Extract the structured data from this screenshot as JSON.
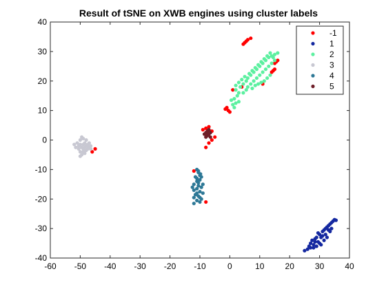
{
  "chart_data": {
    "type": "scatter",
    "title": "Result of tSNE on XWB engines using cluster labels",
    "xlabel": "",
    "ylabel": "",
    "xlim": [
      -60,
      40
    ],
    "ylim": [
      -40,
      40
    ],
    "xticks": [
      -60,
      -50,
      -40,
      -30,
      -20,
      -10,
      0,
      10,
      20,
      30,
      40
    ],
    "yticks": [
      -40,
      -30,
      -20,
      -10,
      0,
      10,
      20,
      30,
      40
    ],
    "grid": false,
    "legend_position": "top-right",
    "series": [
      {
        "name": "-1",
        "color": "#ff0000",
        "points": [
          [
            5.0,
            33.0
          ],
          [
            5.5,
            33.5
          ],
          [
            6.0,
            34.0
          ],
          [
            7.0,
            34.5
          ],
          [
            4.5,
            32.5
          ],
          [
            15.0,
            26.0
          ],
          [
            15.5,
            26.5
          ],
          [
            16.0,
            27.0
          ],
          [
            14.0,
            23.0
          ],
          [
            14.5,
            23.5
          ],
          [
            15.0,
            24.0
          ],
          [
            11.0,
            19.0
          ],
          [
            4.0,
            18.0
          ],
          [
            1.0,
            17.0
          ],
          [
            -1.0,
            11.0
          ],
          [
            -0.5,
            10.0
          ],
          [
            0.0,
            9.5
          ],
          [
            -1.5,
            10.5
          ],
          [
            -45.0,
            -3.0
          ],
          [
            -46.0,
            -4.0
          ],
          [
            -8.0,
            4.0
          ],
          [
            -7.0,
            4.5
          ],
          [
            -6.0,
            3.0
          ],
          [
            -9.0,
            3.5
          ],
          [
            -5.0,
            1.0
          ],
          [
            -6.0,
            0.0
          ],
          [
            -7.0,
            -1.0
          ],
          [
            -8.0,
            -2.5
          ],
          [
            -12.0,
            -10.5
          ],
          [
            -8.0,
            -21.0
          ]
        ]
      },
      {
        "name": "1",
        "color": "#1428a0",
        "points": [
          [
            25.0,
            -37.5
          ],
          [
            26.0,
            -37.0
          ],
          [
            27.0,
            -36.5
          ],
          [
            26.5,
            -36.0
          ],
          [
            28.0,
            -35.5
          ],
          [
            27.5,
            -34.0
          ],
          [
            28.5,
            -34.5
          ],
          [
            29.0,
            -33.0
          ],
          [
            30.0,
            -32.0
          ],
          [
            29.5,
            -31.5
          ],
          [
            31.0,
            -31.0
          ],
          [
            32.0,
            -30.0
          ],
          [
            33.0,
            -29.0
          ],
          [
            34.0,
            -28.0
          ],
          [
            35.0,
            -27.0
          ],
          [
            34.5,
            -27.5
          ],
          [
            33.5,
            -28.5
          ],
          [
            32.5,
            -29.5
          ],
          [
            31.5,
            -30.5
          ],
          [
            30.5,
            -33.0
          ],
          [
            29.5,
            -34.5
          ],
          [
            28.0,
            -36.5
          ],
          [
            27.0,
            -35.0
          ],
          [
            30.0,
            -35.0
          ],
          [
            31.0,
            -32.5
          ],
          [
            32.0,
            -32.0
          ],
          [
            33.0,
            -30.5
          ],
          [
            34.0,
            -30.0
          ],
          [
            31.5,
            -34.0
          ],
          [
            29.0,
            -36.0
          ],
          [
            28.5,
            -33.5
          ],
          [
            33.5,
            -31.0
          ],
          [
            35.5,
            -27.2
          ],
          [
            32.5,
            -33.0
          ],
          [
            30.5,
            -35.5
          ]
        ]
      },
      {
        "name": "2",
        "color": "#5cf0a0",
        "points": [
          [
            1.0,
            12.0
          ],
          [
            2.0,
            12.5
          ],
          [
            3.0,
            13.0
          ],
          [
            1.5,
            14.0
          ],
          [
            2.5,
            15.0
          ],
          [
            3.0,
            16.0
          ],
          [
            2.0,
            17.0
          ],
          [
            3.5,
            18.0
          ],
          [
            4.5,
            19.0
          ],
          [
            5.5,
            20.0
          ],
          [
            6.0,
            21.0
          ],
          [
            7.0,
            22.0
          ],
          [
            8.0,
            23.0
          ],
          [
            9.0,
            24.0
          ],
          [
            10.0,
            25.0
          ],
          [
            11.0,
            26.0
          ],
          [
            12.0,
            27.0
          ],
          [
            13.0,
            28.0
          ],
          [
            14.0,
            28.5
          ],
          [
            15.0,
            29.0
          ],
          [
            13.5,
            29.5
          ],
          [
            12.5,
            28.5
          ],
          [
            11.5,
            27.5
          ],
          [
            10.5,
            26.5
          ],
          [
            9.5,
            25.5
          ],
          [
            8.5,
            24.5
          ],
          [
            7.5,
            23.5
          ],
          [
            6.5,
            22.5
          ],
          [
            5.0,
            21.5
          ],
          [
            4.0,
            20.5
          ],
          [
            3.0,
            19.5
          ],
          [
            2.0,
            18.5
          ],
          [
            6.0,
            18.0
          ],
          [
            7.0,
            19.0
          ],
          [
            8.0,
            20.0
          ],
          [
            9.0,
            21.0
          ],
          [
            10.0,
            22.0
          ],
          [
            11.0,
            23.0
          ],
          [
            12.0,
            24.0
          ],
          [
            13.0,
            25.0
          ],
          [
            14.0,
            26.0
          ],
          [
            15.0,
            27.0
          ],
          [
            13.5,
            22.0
          ],
          [
            12.5,
            21.0
          ],
          [
            11.5,
            20.0
          ],
          [
            10.5,
            19.5
          ],
          [
            9.5,
            19.0
          ],
          [
            8.5,
            18.5
          ],
          [
            7.5,
            17.5
          ],
          [
            4.5,
            16.0
          ],
          [
            5.5,
            17.0
          ],
          [
            1.5,
            11.0
          ],
          [
            0.5,
            13.5
          ],
          [
            14.5,
            28.0
          ],
          [
            16.0,
            29.5
          ]
        ]
      },
      {
        "name": "3",
        "color": "#c8c8d2",
        "points": [
          [
            -51.0,
            -1.0
          ],
          [
            -50.5,
            -2.0
          ],
          [
            -50.0,
            -1.5
          ],
          [
            -49.5,
            -2.5
          ],
          [
            -49.0,
            -3.0
          ],
          [
            -48.5,
            -1.0
          ],
          [
            -48.0,
            -2.0
          ],
          [
            -47.5,
            -1.5
          ],
          [
            -47.0,
            -2.5
          ],
          [
            -46.5,
            -3.0
          ],
          [
            -50.0,
            0.0
          ],
          [
            -49.0,
            0.5
          ],
          [
            -48.0,
            0.0
          ],
          [
            -49.5,
            1.0
          ],
          [
            -50.5,
            -3.0
          ],
          [
            -49.0,
            -4.0
          ],
          [
            -48.5,
            -4.5
          ],
          [
            -49.5,
            -5.0
          ],
          [
            -50.0,
            -5.5
          ],
          [
            -48.0,
            -3.5
          ],
          [
            -47.0,
            -1.0
          ],
          [
            -46.5,
            -2.0
          ],
          [
            -51.5,
            -2.5
          ],
          [
            -52.0,
            -1.5
          ],
          [
            -49.0,
            -1.5
          ],
          [
            -48.5,
            -2.5
          ],
          [
            -47.5,
            -3.0
          ],
          [
            -50.0,
            -4.0
          ]
        ]
      },
      {
        "name": "4",
        "color": "#2d7896",
        "points": [
          [
            -11.0,
            -10.0
          ],
          [
            -10.5,
            -11.0
          ],
          [
            -10.0,
            -12.0
          ],
          [
            -11.5,
            -12.5
          ],
          [
            -10.0,
            -13.5
          ],
          [
            -11.0,
            -14.0
          ],
          [
            -12.0,
            -15.0
          ],
          [
            -10.5,
            -15.5
          ],
          [
            -9.5,
            -16.0
          ],
          [
            -11.0,
            -16.5
          ],
          [
            -12.0,
            -17.0
          ],
          [
            -10.0,
            -17.5
          ],
          [
            -9.0,
            -18.0
          ],
          [
            -11.5,
            -18.5
          ],
          [
            -10.5,
            -19.0
          ],
          [
            -12.0,
            -19.5
          ],
          [
            -9.5,
            -20.0
          ],
          [
            -11.0,
            -20.5
          ],
          [
            -10.0,
            -21.0
          ],
          [
            -12.0,
            -21.5
          ],
          [
            -11.0,
            -13.0
          ],
          [
            -10.5,
            -14.5
          ],
          [
            -9.5,
            -12.5
          ],
          [
            -12.5,
            -16.0
          ],
          [
            -9.0,
            -15.0
          ],
          [
            -11.0,
            -18.0
          ],
          [
            -10.0,
            -19.5
          ],
          [
            -10.5,
            -10.5
          ],
          [
            -9.8,
            -11.5
          ]
        ]
      },
      {
        "name": "5",
        "color": "#6e1e28",
        "points": [
          [
            -8.0,
            2.5
          ],
          [
            -7.5,
            3.0
          ],
          [
            -7.0,
            2.0
          ],
          [
            -6.5,
            2.5
          ],
          [
            -7.5,
            1.5
          ],
          [
            -8.0,
            1.0
          ],
          [
            -7.0,
            3.5
          ],
          [
            -6.5,
            1.0
          ],
          [
            -8.5,
            2.0
          ],
          [
            -7.2,
            2.2
          ]
        ]
      }
    ]
  }
}
